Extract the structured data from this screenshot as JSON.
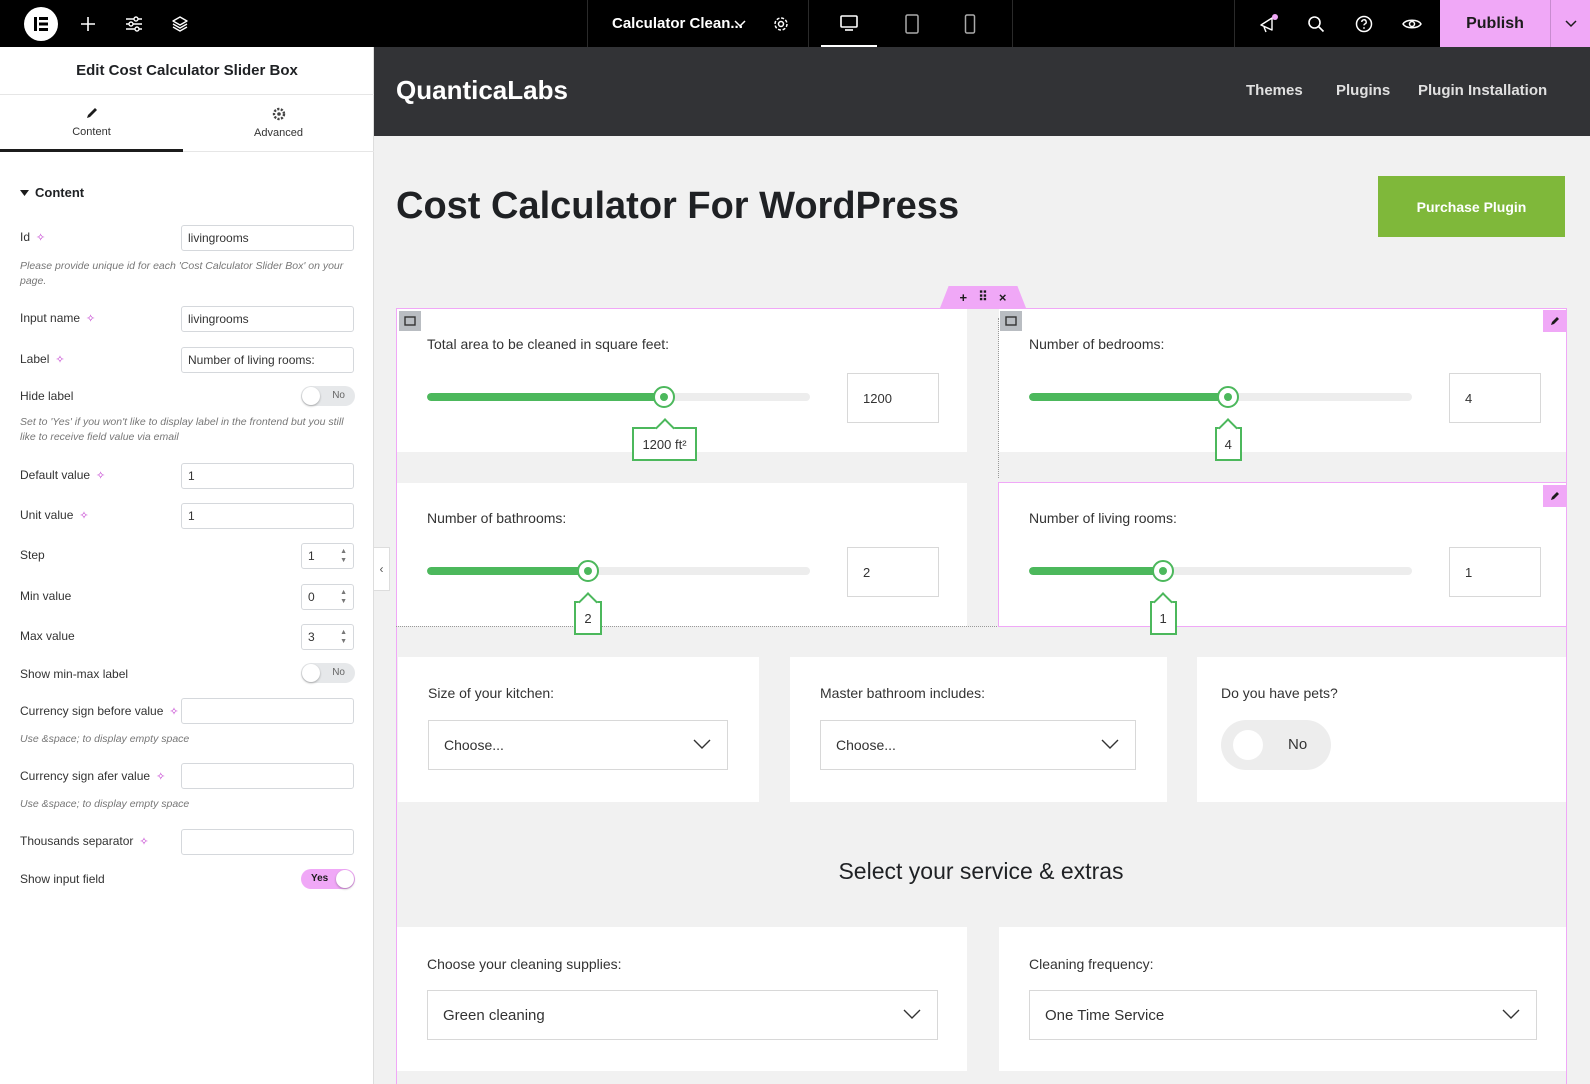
{
  "topbar": {
    "doc_title": "Calculator Clean...",
    "publish_label": "Publish"
  },
  "panel": {
    "title": "Edit Cost Calculator Slider Box",
    "tabs": [
      {
        "label": "Content"
      },
      {
        "label": "Advanced"
      }
    ],
    "section_label": "Content",
    "fields": {
      "id": {
        "label": "Id",
        "value": "livingrooms",
        "hint": "Please provide unique id for each 'Cost Calculator Slider Box' on your page."
      },
      "input_name": {
        "label": "Input name",
        "value": "livingrooms"
      },
      "label": {
        "label": "Label",
        "value": "Number of living rooms:"
      },
      "hide_label": {
        "label": "Hide label",
        "state": "No",
        "hint": "Set to 'Yes' if you won't like to display label in the frontend but you still like to receive field value via email"
      },
      "default_value": {
        "label": "Default value",
        "value": "1"
      },
      "unit_value": {
        "label": "Unit value",
        "value": "1"
      },
      "step": {
        "label": "Step",
        "value": "1"
      },
      "min_value": {
        "label": "Min value",
        "value": "0"
      },
      "max_value": {
        "label": "Max value",
        "value": "3"
      },
      "show_min_max": {
        "label": "Show min-max label",
        "state": "No"
      },
      "currency_before": {
        "label": "Currency sign before value",
        "value": "",
        "hint": "Use &space; to display empty space"
      },
      "currency_after": {
        "label": "Currency sign afer value",
        "value": "",
        "hint": "Use &space; to display empty space"
      },
      "thousands_sep": {
        "label": "Thousands separator",
        "value": ""
      },
      "show_input": {
        "label": "Show input field",
        "state": "Yes"
      }
    }
  },
  "site": {
    "brand": "QuanticaLabs",
    "nav": [
      "Themes",
      "Plugins",
      "Plugin Installation"
    ],
    "page_title": "Cost Calculator For WordPress",
    "purchase_label": "Purchase Plugin"
  },
  "calculator": {
    "sliders": [
      {
        "label": "Total area to be cleaned in square feet:",
        "value": "1200",
        "tooltip": "1200 ft²",
        "fraction": 0.62
      },
      {
        "label": "Number of bedrooms:",
        "value": "4",
        "tooltip": "4",
        "fraction": 0.52
      },
      {
        "label": "Number of bathrooms:",
        "value": "2",
        "tooltip": "2",
        "fraction": 0.42
      },
      {
        "label": "Number of living rooms:",
        "value": "1",
        "tooltip": "1",
        "fraction": 0.35
      }
    ],
    "kitchen": {
      "label": "Size of your kitchen:",
      "value": "Choose..."
    },
    "master_bath": {
      "label": "Master bathroom includes:",
      "value": "Choose..."
    },
    "pets": {
      "label": "Do you have pets?",
      "state": "No"
    },
    "service_title": "Select your service & extras",
    "supplies": {
      "label": "Choose your cleaning supplies:",
      "value": "Green cleaning"
    },
    "frequency": {
      "label": "Cleaning frequency:",
      "value": "One Time Service"
    }
  },
  "colors": {
    "accent_green": "#4cb85c",
    "editor_pink": "#f0a8f7",
    "purchase_green": "#7fb83a"
  }
}
